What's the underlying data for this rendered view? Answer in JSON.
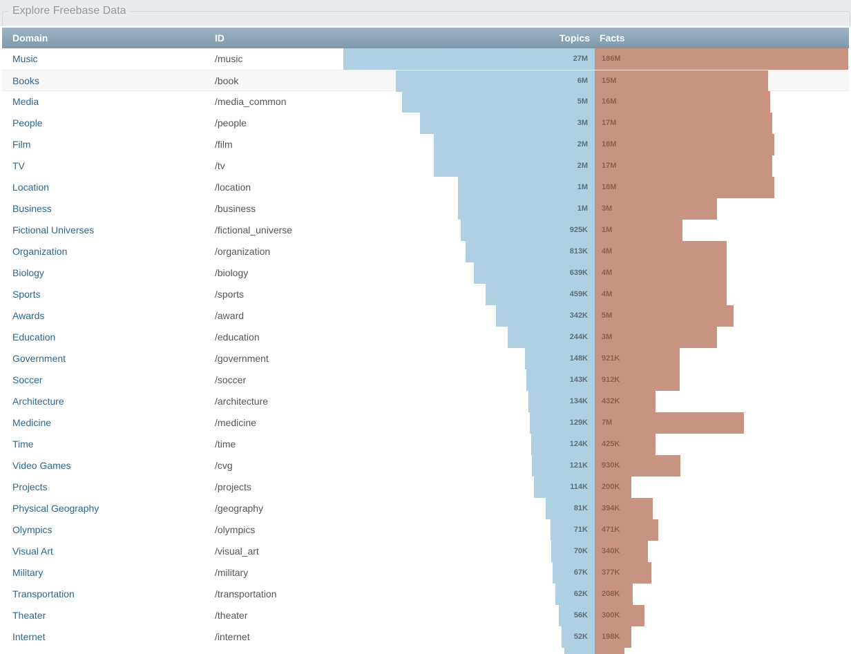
{
  "page": {
    "title": "Explore Freebase Data"
  },
  "table": {
    "columns": {
      "domain": "Domain",
      "id": "ID",
      "topics": "Topics",
      "facts": "Facts"
    },
    "colors": {
      "header": "#8aa2b4",
      "topics_bar": "#aed0e3",
      "facts_bar": "#c89380",
      "link": "#2b6693"
    },
    "rows": [
      {
        "domain": "Music",
        "id": "/music",
        "topics": "27M",
        "facts": "186M",
        "topics_n": 27000000,
        "facts_n": 186000000
      },
      {
        "domain": "Books",
        "id": "/book",
        "topics": "6M",
        "facts": "15M",
        "topics_n": 6000000,
        "facts_n": 15000000
      },
      {
        "domain": "Media",
        "id": "/media_common",
        "topics": "5M",
        "facts": "16M",
        "topics_n": 5000000,
        "facts_n": 16000000
      },
      {
        "domain": "People",
        "id": "/people",
        "topics": "3M",
        "facts": "17M",
        "topics_n": 3000000,
        "facts_n": 17000000
      },
      {
        "domain": "Film",
        "id": "/film",
        "topics": "2M",
        "facts": "18M",
        "topics_n": 2000000,
        "facts_n": 18000000
      },
      {
        "domain": "TV",
        "id": "/tv",
        "topics": "2M",
        "facts": "17M",
        "topics_n": 2000000,
        "facts_n": 17000000
      },
      {
        "domain": "Location",
        "id": "/location",
        "topics": "1M",
        "facts": "18M",
        "topics_n": 1000000,
        "facts_n": 18000000
      },
      {
        "domain": "Business",
        "id": "/business",
        "topics": "1M",
        "facts": "3M",
        "topics_n": 1000000,
        "facts_n": 3000000
      },
      {
        "domain": "Fictional Universes",
        "id": "/fictional_universe",
        "topics": "925K",
        "facts": "1M",
        "topics_n": 925000,
        "facts_n": 1000000
      },
      {
        "domain": "Organization",
        "id": "/organization",
        "topics": "813K",
        "facts": "4M",
        "topics_n": 813000,
        "facts_n": 4000000
      },
      {
        "domain": "Biology",
        "id": "/biology",
        "topics": "639K",
        "facts": "4M",
        "topics_n": 639000,
        "facts_n": 4000000
      },
      {
        "domain": "Sports",
        "id": "/sports",
        "topics": "459K",
        "facts": "4M",
        "topics_n": 459000,
        "facts_n": 4000000
      },
      {
        "domain": "Awards",
        "id": "/award",
        "topics": "342K",
        "facts": "5M",
        "topics_n": 342000,
        "facts_n": 5000000
      },
      {
        "domain": "Education",
        "id": "/education",
        "topics": "244K",
        "facts": "3M",
        "topics_n": 244000,
        "facts_n": 3000000
      },
      {
        "domain": "Government",
        "id": "/government",
        "topics": "148K",
        "facts": "921K",
        "topics_n": 148000,
        "facts_n": 921000
      },
      {
        "domain": "Soccer",
        "id": "/soccer",
        "topics": "143K",
        "facts": "912K",
        "topics_n": 143000,
        "facts_n": 912000
      },
      {
        "domain": "Architecture",
        "id": "/architecture",
        "topics": "134K",
        "facts": "432K",
        "topics_n": 134000,
        "facts_n": 432000
      },
      {
        "domain": "Medicine",
        "id": "/medicine",
        "topics": "129K",
        "facts": "7M",
        "topics_n": 129000,
        "facts_n": 7000000
      },
      {
        "domain": "Time",
        "id": "/time",
        "topics": "124K",
        "facts": "425K",
        "topics_n": 124000,
        "facts_n": 425000
      },
      {
        "domain": "Video Games",
        "id": "/cvg",
        "topics": "121K",
        "facts": "930K",
        "topics_n": 121000,
        "facts_n": 930000
      },
      {
        "domain": "Projects",
        "id": "/projects",
        "topics": "114K",
        "facts": "200K",
        "topics_n": 114000,
        "facts_n": 200000
      },
      {
        "domain": "Physical Geography",
        "id": "/geography",
        "topics": "81K",
        "facts": "394K",
        "topics_n": 81000,
        "facts_n": 394000
      },
      {
        "domain": "Olympics",
        "id": "/olympics",
        "topics": "71K",
        "facts": "471K",
        "topics_n": 71000,
        "facts_n": 471000
      },
      {
        "domain": "Visual Art",
        "id": "/visual_art",
        "topics": "70K",
        "facts": "340K",
        "topics_n": 70000,
        "facts_n": 340000
      },
      {
        "domain": "Military",
        "id": "/military",
        "topics": "67K",
        "facts": "377K",
        "topics_n": 67000,
        "facts_n": 377000
      },
      {
        "domain": "Transportation",
        "id": "/transportation",
        "topics": "62K",
        "facts": "208K",
        "topics_n": 62000,
        "facts_n": 208000
      },
      {
        "domain": "Theater",
        "id": "/theater",
        "topics": "56K",
        "facts": "300K",
        "topics_n": 56000,
        "facts_n": 300000
      },
      {
        "domain": "Internet",
        "id": "/internet",
        "topics": "52K",
        "facts": "198K",
        "topics_n": 52000,
        "facts_n": 198000
      },
      {
        "domain": "",
        "id": "",
        "topics": "",
        "facts": "",
        "topics_n": 48000,
        "facts_n": 160000
      }
    ]
  }
}
